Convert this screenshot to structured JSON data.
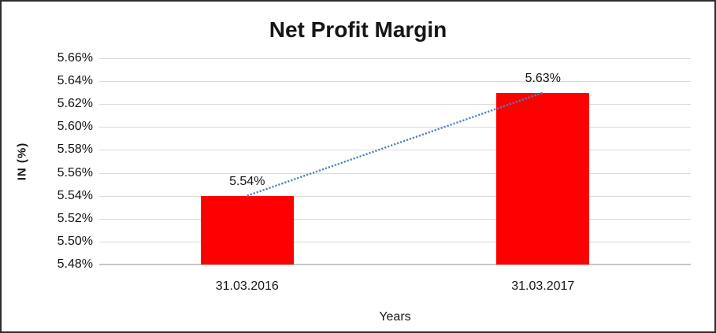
{
  "chart_data": {
    "type": "bar",
    "title": "Net Profit Margin",
    "xlabel": "Years",
    "ylabel": "IN (%)",
    "categories": [
      "31.03.2016",
      "31.03.2017"
    ],
    "series": [
      {
        "name": "Net Profit Margin",
        "values": [
          5.54,
          5.63
        ]
      }
    ],
    "data_labels": [
      "5.54%",
      "5.63%"
    ],
    "ylim": [
      5.48,
      5.66
    ],
    "ytick_step": 0.02,
    "ytick_labels": [
      "5.48%",
      "5.50%",
      "5.52%",
      "5.54%",
      "5.56%",
      "5.58%",
      "5.60%",
      "5.62%",
      "5.64%",
      "5.66%"
    ],
    "grid": true,
    "legend": false,
    "bar_color": "#ff0000",
    "gridline_color": "#d9d9d9",
    "trendline": {
      "style": "dotted",
      "color": "#4f81bd",
      "from_value": 5.54,
      "to_value": 5.63
    }
  }
}
